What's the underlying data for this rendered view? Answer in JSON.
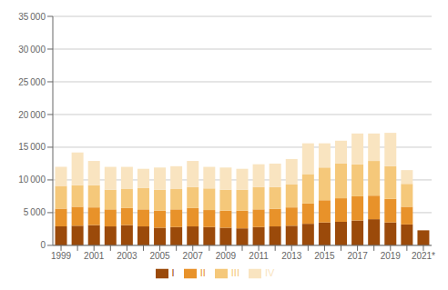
{
  "chart_data": {
    "type": "bar",
    "stacked": true,
    "grid": true,
    "legend": "bottom",
    "categories": [
      "1999",
      null,
      "2001",
      null,
      "2003",
      null,
      "2005",
      null,
      "2007",
      null,
      "2009",
      null,
      "2011",
      null,
      "2013",
      null,
      "2015",
      null,
      "2017",
      null,
      "2019",
      null,
      "2021*"
    ],
    "series": [
      {
        "name": "I",
        "color": "#9b4a0a",
        "values": [
          2900,
          3000,
          3100,
          2900,
          3100,
          2900,
          2700,
          2800,
          2900,
          2800,
          2700,
          2600,
          2800,
          2900,
          3000,
          3300,
          3500,
          3600,
          3800,
          4000,
          3500,
          3200,
          2300
        ]
      },
      {
        "name": "II",
        "color": "#e8922a",
        "values": [
          2700,
          2900,
          2700,
          2600,
          2600,
          2600,
          2600,
          2700,
          2800,
          2600,
          2600,
          2700,
          2700,
          2700,
          2800,
          3100,
          3400,
          3600,
          3700,
          3600,
          3600,
          2700,
          0
        ]
      },
      {
        "name": "III",
        "color": "#f5c87a",
        "values": [
          3500,
          3300,
          3400,
          3000,
          2900,
          3300,
          3200,
          3100,
          3200,
          3300,
          3200,
          3200,
          3400,
          3300,
          3500,
          4500,
          5000,
          5300,
          4900,
          5300,
          5000,
          3500,
          0
        ]
      },
      {
        "name": "IV",
        "color": "#f9e4c0",
        "values": [
          2900,
          5000,
          3700,
          3500,
          3400,
          2900,
          3400,
          3500,
          4000,
          3300,
          3400,
          3200,
          3500,
          3600,
          3900,
          4700,
          3700,
          3500,
          4700,
          4200,
          5100,
          2100,
          0
        ]
      }
    ],
    "ylim": [
      0,
      35000
    ],
    "yticks": [
      0,
      {
        "value": 5000,
        "label": "5 000"
      },
      {
        "value": 10000,
        "label": "10 000"
      },
      {
        "value": 15000,
        "label": "15 000"
      },
      {
        "value": 20000,
        "label": "20 000"
      },
      {
        "value": 25000,
        "label": "25 000"
      },
      {
        "value": 30000,
        "label": "30 000"
      },
      {
        "value": 35000,
        "label": "35 000"
      }
    ]
  }
}
